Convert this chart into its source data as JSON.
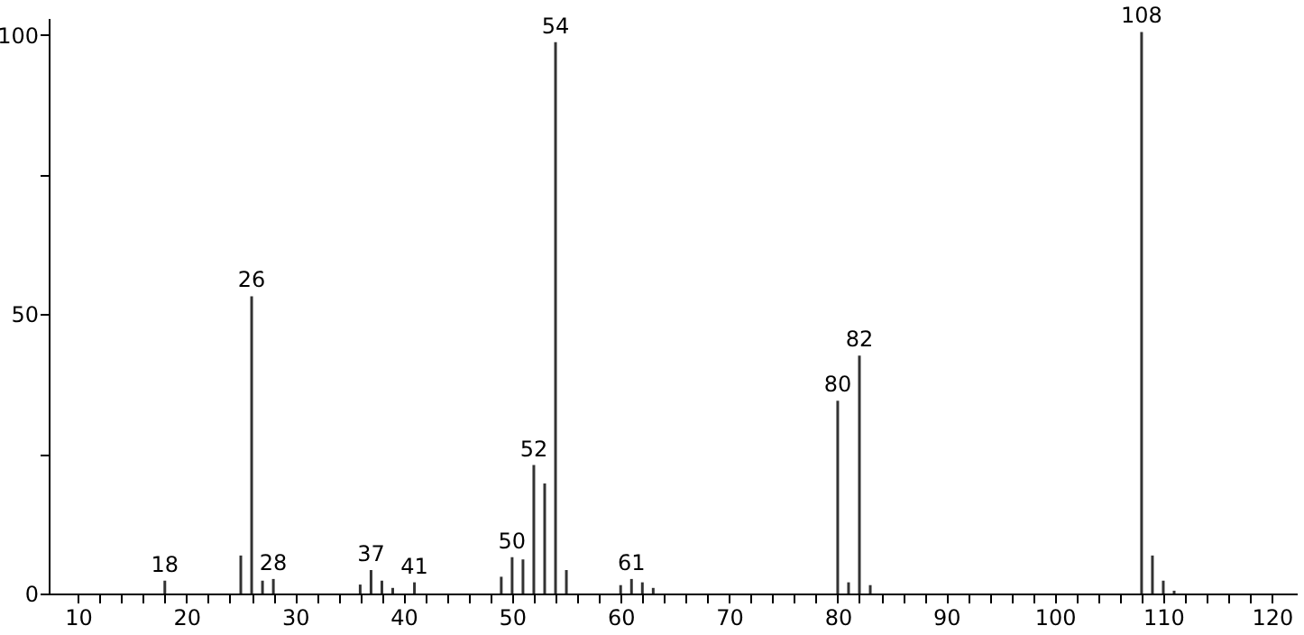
{
  "chart_data": {
    "type": "bar",
    "color": "#333333",
    "x": [
      18,
      25,
      26,
      27,
      28,
      36,
      37,
      38,
      39,
      41,
      49,
      50,
      51,
      52,
      53,
      54,
      55,
      60,
      61,
      62,
      63,
      80,
      81,
      82,
      83,
      108,
      109,
      110,
      111
    ],
    "values": [
      2.3,
      6.8,
      53.2,
      2.3,
      2.6,
      1.6,
      4.2,
      2.3,
      1,
      2,
      3,
      6.5,
      6.1,
      23,
      19.7,
      98.7,
      4.2,
      1.5,
      2.6,
      2,
      1,
      34.5,
      2,
      42.6,
      1.5,
      100.5,
      6.8,
      2.3,
      0.5
    ],
    "xlim": [
      7.3,
      122.3
    ],
    "xticks": [
      10,
      {
        "value": 12,
        "label": null
      },
      {
        "value": 14,
        "label": null
      },
      {
        "value": 16,
        "label": null
      },
      {
        "value": 18,
        "label": null
      },
      20,
      {
        "value": 22,
        "label": null
      },
      {
        "value": 24,
        "label": null
      },
      {
        "value": 26,
        "label": null
      },
      {
        "value": 28,
        "label": null
      },
      30,
      {
        "value": 32,
        "label": null
      },
      {
        "value": 34,
        "label": null
      },
      {
        "value": 36,
        "label": null
      },
      {
        "value": 38,
        "label": null
      },
      40,
      {
        "value": 42,
        "label": null
      },
      {
        "value": 44,
        "label": null
      },
      {
        "value": 46,
        "label": null
      },
      {
        "value": 48,
        "label": null
      },
      50,
      {
        "value": 52,
        "label": null
      },
      {
        "value": 54,
        "label": null
      },
      {
        "value": 56,
        "label": null
      },
      {
        "value": 58,
        "label": null
      },
      60,
      {
        "value": 62,
        "label": null
      },
      {
        "value": 64,
        "label": null
      },
      {
        "value": 66,
        "label": null
      },
      {
        "value": 68,
        "label": null
      },
      70,
      {
        "value": 72,
        "label": null
      },
      {
        "value": 74,
        "label": null
      },
      {
        "value": 76,
        "label": null
      },
      {
        "value": 78,
        "label": null
      },
      80,
      {
        "value": 82,
        "label": null
      },
      {
        "value": 84,
        "label": null
      },
      {
        "value": 86,
        "label": null
      },
      {
        "value": 88,
        "label": null
      },
      90,
      {
        "value": 92,
        "label": null
      },
      {
        "value": 94,
        "label": null
      },
      {
        "value": 96,
        "label": null
      },
      {
        "value": 98,
        "label": null
      },
      100,
      {
        "value": 102,
        "label": null
      },
      {
        "value": 104,
        "label": null
      },
      {
        "value": 106,
        "label": null
      },
      {
        "value": 108,
        "label": null
      },
      110,
      {
        "value": 112,
        "label": null
      },
      {
        "value": 114,
        "label": null
      },
      {
        "value": 116,
        "label": null
      },
      {
        "value": 118,
        "label": null
      },
      120
    ],
    "ylim": [
      0,
      103
    ],
    "yticks": [
      0,
      {
        "value": 25,
        "label": null
      },
      50,
      {
        "value": 75,
        "label": null
      },
      100
    ],
    "annotations": [
      {
        "text": "18",
        "x": 18,
        "y": 2.3
      },
      {
        "text": "26",
        "x": 26,
        "y": 53.2
      },
      {
        "text": "28",
        "x": 28,
        "y": 2.6
      },
      {
        "text": "37",
        "x": 37,
        "y": 4.2
      },
      {
        "text": "41",
        "x": 41,
        "y": 2
      },
      {
        "text": "50",
        "x": 50,
        "y": 6.5
      },
      {
        "text": "52",
        "x": 52,
        "y": 23
      },
      {
        "text": "54",
        "x": 54,
        "y": 98.7
      },
      {
        "text": "61",
        "x": 61,
        "y": 2.6
      },
      {
        "text": "80",
        "x": 80,
        "y": 34.5
      },
      {
        "text": "82",
        "x": 82,
        "y": 42.6
      },
      {
        "text": "108",
        "x": 108,
        "y": 100.5
      }
    ]
  }
}
